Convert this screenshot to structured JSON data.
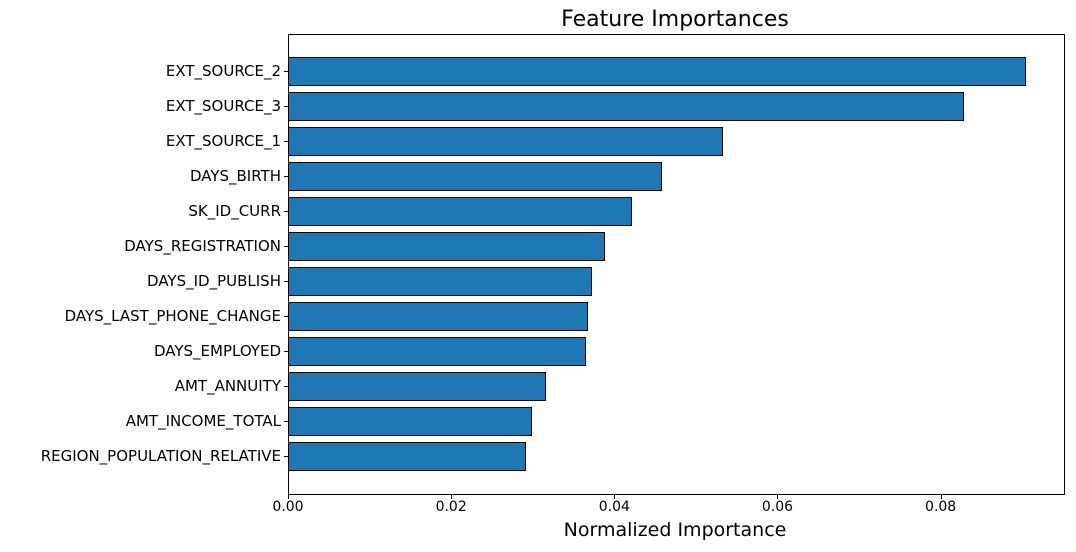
{
  "chart_data": {
    "type": "bar",
    "orientation": "horizontal",
    "title": "Feature Importances",
    "xlabel": "Normalized Importance",
    "ylabel": "",
    "categories": [
      "EXT_SOURCE_2",
      "EXT_SOURCE_3",
      "EXT_SOURCE_1",
      "DAYS_BIRTH",
      "SK_ID_CURR",
      "DAYS_REGISTRATION",
      "DAYS_ID_PUBLISH",
      "DAYS_LAST_PHONE_CHANGE",
      "DAYS_EMPLOYED",
      "AMT_ANNUITY",
      "AMT_INCOME_TOTAL",
      "REGION_POPULATION_RELATIVE"
    ],
    "values": [
      0.0905,
      0.0829,
      0.0533,
      0.0458,
      0.0422,
      0.0388,
      0.0373,
      0.0368,
      0.0365,
      0.0316,
      0.0299,
      0.0292
    ],
    "xlim": [
      0,
      0.095
    ],
    "xticks": [
      0.0,
      0.02,
      0.04,
      0.06,
      0.08
    ],
    "xtick_labels": [
      "0.00",
      "0.02",
      "0.04",
      "0.06",
      "0.08"
    ],
    "bar_color": "#1f77b4",
    "bar_edge_color": "#000000",
    "grid": false,
    "legend_position": "none"
  }
}
